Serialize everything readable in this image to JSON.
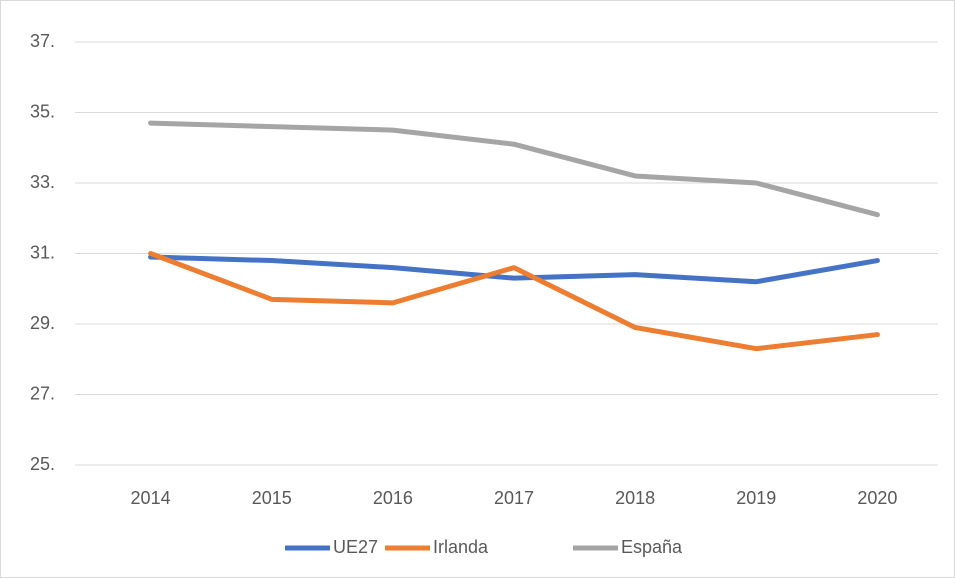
{
  "chart_data": {
    "type": "line",
    "categories": [
      "2014",
      "2015",
      "2016",
      "2017",
      "2018",
      "2019",
      "2020"
    ],
    "series": [
      {
        "name": "UE27",
        "color": "#4472c4",
        "values": [
          30.9,
          30.8,
          30.6,
          30.3,
          30.4,
          30.2,
          30.8
        ]
      },
      {
        "name": "Irlanda",
        "color": "#ed7d31",
        "values": [
          31.0,
          29.7,
          29.6,
          30.6,
          28.9,
          28.3,
          28.7
        ]
      },
      {
        "name": "España",
        "color": "#a5a5a5",
        "values": [
          34.7,
          34.6,
          34.5,
          34.1,
          33.2,
          33.0,
          32.1
        ]
      }
    ],
    "ylim": [
      25,
      37
    ],
    "yticks": [
      {
        "value": 25,
        "label": "25."
      },
      {
        "value": 27,
        "label": "27."
      },
      {
        "value": 29,
        "label": "29."
      },
      {
        "value": 31,
        "label": "31."
      },
      {
        "value": 33,
        "label": "33."
      },
      {
        "value": 35,
        "label": "35."
      },
      {
        "value": 37,
        "label": "37."
      }
    ],
    "grid": true,
    "legend": "bottom"
  }
}
